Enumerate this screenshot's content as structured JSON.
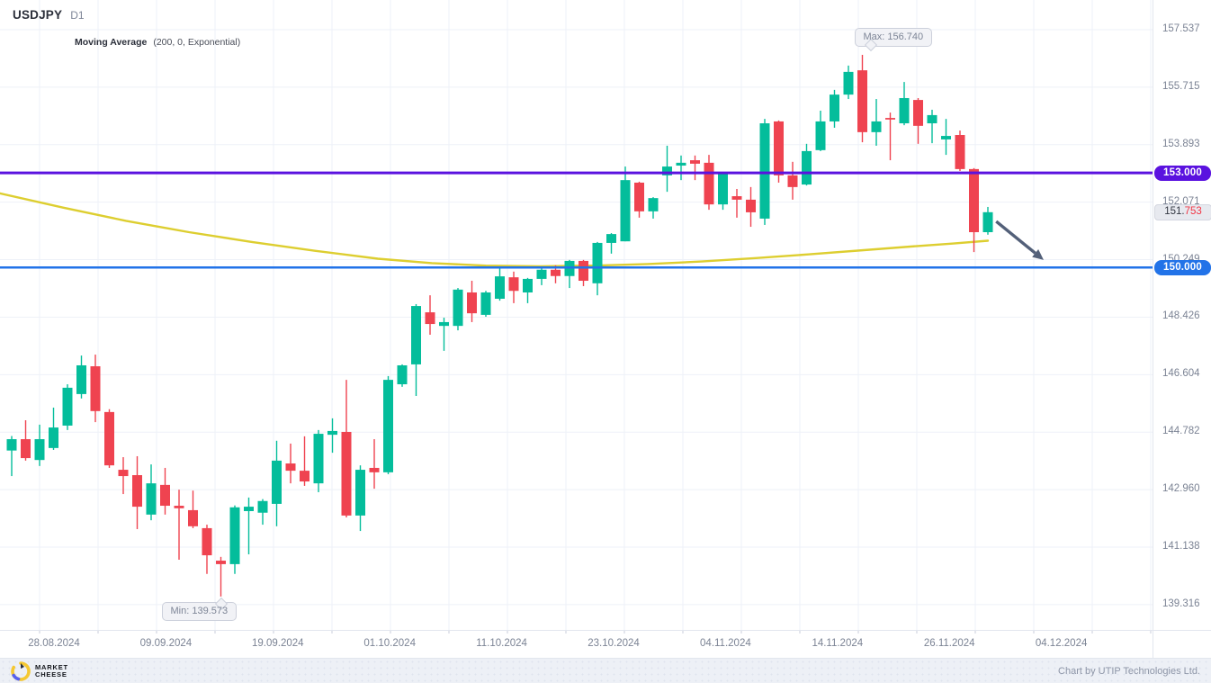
{
  "header": {
    "symbol": "USDJPY",
    "timeframe": "D1",
    "indicator_name": "Moving Average",
    "indicator_params": "(200, 0, Exponential)"
  },
  "colors": {
    "up": "#04bd9b",
    "down": "#ef4350",
    "ma_line": "#ddce30",
    "level_purple": "#5a12df",
    "level_blue": "#2273e8",
    "arrow": "#536079",
    "grid": "#eef1f8",
    "tick": "#c9cedb",
    "axis_text": "#7b8394",
    "price_badge_bg": "#e7e9ef",
    "price_badge_red": "#f23645"
  },
  "chart_data": {
    "type": "candlestick",
    "title": "USDJPY D1",
    "up_color": "#04bd9b",
    "down_color": "#ef4350",
    "y_tick_labels": [
      "157.537",
      "155.715",
      "153.893",
      "152.071",
      "150.249",
      "148.426",
      "146.604",
      "144.782",
      "142.960",
      "141.138",
      "139.316"
    ],
    "x_tick_labels": [
      "28.08.2024",
      "09.09.2024",
      "19.09.2024",
      "01.10.2024",
      "11.10.2024",
      "23.10.2024",
      "04.11.2024",
      "14.11.2024",
      "26.11.2024",
      "04.12.2024"
    ],
    "candles": [
      [
        144.2,
        144.66,
        143.39,
        144.56
      ],
      [
        144.56,
        145.16,
        143.88,
        143.96
      ],
      [
        143.9,
        145.02,
        143.71,
        144.56
      ],
      [
        144.28,
        145.56,
        144.22,
        144.93
      ],
      [
        144.99,
        146.3,
        144.85,
        146.19
      ],
      [
        145.99,
        147.21,
        145.85,
        146.9
      ],
      [
        146.87,
        147.24,
        145.1,
        145.45
      ],
      [
        145.42,
        145.51,
        143.65,
        143.73
      ],
      [
        143.59,
        143.99,
        142.82,
        143.39
      ],
      [
        143.42,
        144.02,
        141.71,
        142.42
      ],
      [
        142.17,
        143.76,
        141.99,
        143.16
      ],
      [
        143.11,
        143.65,
        142.17,
        142.45
      ],
      [
        142.45,
        142.96,
        140.74,
        142.37
      ],
      [
        142.31,
        142.93,
        141.74,
        141.8
      ],
      [
        141.74,
        141.85,
        140.29,
        140.88
      ],
      [
        140.71,
        140.83,
        139.573,
        140.6
      ],
      [
        140.6,
        142.46,
        140.29,
        142.4
      ],
      [
        142.28,
        142.71,
        140.91,
        142.42
      ],
      [
        142.23,
        142.66,
        141.85,
        142.6
      ],
      [
        142.51,
        144.51,
        141.8,
        143.88
      ],
      [
        143.79,
        144.42,
        143.16,
        143.56
      ],
      [
        143.56,
        144.65,
        143.08,
        143.22
      ],
      [
        143.16,
        144.85,
        142.88,
        144.73
      ],
      [
        144.7,
        145.22,
        144.13,
        144.82
      ],
      [
        144.79,
        146.44,
        142.08,
        142.14
      ],
      [
        142.14,
        143.73,
        141.65,
        143.59
      ],
      [
        143.65,
        144.56,
        142.99,
        143.51
      ],
      [
        143.51,
        146.56,
        143.45,
        146.44
      ],
      [
        146.3,
        146.93,
        146.22,
        146.9
      ],
      [
        146.93,
        148.84,
        145.93,
        148.78
      ],
      [
        148.58,
        149.12,
        147.87,
        148.21
      ],
      [
        148.15,
        148.41,
        147.36,
        148.27
      ],
      [
        148.15,
        149.35,
        148.01,
        149.3
      ],
      [
        149.21,
        149.58,
        148.27,
        148.55
      ],
      [
        148.5,
        149.26,
        148.44,
        149.21
      ],
      [
        149.01,
        150.01,
        148.95,
        149.72
      ],
      [
        149.69,
        149.87,
        148.87,
        149.26
      ],
      [
        149.21,
        149.67,
        148.87,
        149.64
      ],
      [
        149.64,
        150.01,
        149.44,
        149.93
      ],
      [
        149.93,
        150.07,
        149.5,
        149.73
      ],
      [
        149.73,
        150.24,
        149.35,
        150.21
      ],
      [
        150.21,
        150.24,
        149.41,
        149.58
      ],
      [
        149.5,
        150.81,
        149.12,
        150.78
      ],
      [
        150.78,
        151.09,
        150.44,
        151.06
      ],
      [
        150.83,
        153.2,
        150.83,
        152.77
      ],
      [
        152.69,
        152.72,
        151.58,
        151.78
      ],
      [
        151.78,
        152.23,
        151.55,
        152.2
      ],
      [
        152.92,
        153.86,
        152.4,
        153.2
      ],
      [
        153.23,
        153.55,
        152.77,
        153.32
      ],
      [
        153.4,
        153.55,
        152.77,
        153.29
      ],
      [
        153.32,
        153.57,
        151.83,
        152.0
      ],
      [
        152.0,
        153.0,
        151.83,
        152.97
      ],
      [
        152.26,
        152.49,
        151.58,
        152.15
      ],
      [
        152.15,
        152.55,
        151.29,
        151.75
      ],
      [
        151.55,
        154.71,
        151.35,
        154.57
      ],
      [
        154.63,
        154.66,
        152.69,
        152.92
      ],
      [
        152.92,
        153.35,
        152.15,
        152.55
      ],
      [
        152.63,
        153.92,
        152.6,
        153.69
      ],
      [
        153.72,
        154.97,
        153.69,
        154.63
      ],
      [
        154.63,
        155.63,
        154.43,
        155.48
      ],
      [
        155.48,
        156.4,
        155.34,
        156.2
      ],
      [
        156.25,
        156.74,
        153.97,
        154.29
      ],
      [
        154.29,
        155.34,
        153.86,
        154.63
      ],
      [
        154.74,
        154.91,
        153.4,
        154.69
      ],
      [
        154.57,
        155.88,
        154.51,
        155.37
      ],
      [
        155.31,
        155.37,
        153.92,
        154.49
      ],
      [
        154.57,
        155.0,
        153.94,
        154.83
      ],
      [
        154.06,
        154.71,
        153.57,
        154.17
      ],
      [
        154.2,
        154.34,
        153.06,
        153.12
      ],
      [
        153.12,
        153.15,
        150.49,
        151.12
      ],
      [
        151.12,
        151.92,
        151.04,
        151.753
      ]
    ],
    "ma": {
      "name": "Moving Average",
      "settings": "(200, 0, Exponential)",
      "color": "#ddce30",
      "points": [
        [
          0,
          152.35
        ],
        [
          70,
          151.9
        ],
        [
          140,
          151.48
        ],
        [
          210,
          151.12
        ],
        [
          280,
          150.81
        ],
        [
          350,
          150.53
        ],
        [
          420,
          150.28
        ],
        [
          480,
          150.14
        ],
        [
          540,
          150.06
        ],
        [
          600,
          150.04
        ],
        [
          660,
          150.06
        ],
        [
          720,
          150.11
        ],
        [
          780,
          150.19
        ],
        [
          840,
          150.3
        ],
        [
          900,
          150.42
        ],
        [
          960,
          150.55
        ],
        [
          1020,
          150.68
        ],
        [
          1060,
          150.76
        ],
        [
          1098,
          150.85
        ]
      ]
    },
    "levels": [
      {
        "label": "153.000",
        "price": 153.0,
        "color": "#5a12df"
      },
      {
        "label": "150.000",
        "price": 150.0,
        "color": "#2273e8"
      }
    ],
    "last_price": 151.753,
    "max_annotation": {
      "label": "Max: 156.740",
      "price": 156.74,
      "candle_index": 61
    },
    "min_annotation": {
      "label": "Min: 139.573",
      "price": 139.573,
      "candle_index": 15
    },
    "trend_arrow": {
      "from": {
        "candle": 70.6,
        "price": 151.46
      },
      "to": {
        "candle": 74.0,
        "price": 150.24
      }
    }
  },
  "price_label": {
    "prefix": "151.",
    "suffix": "753"
  },
  "levels_labels": {
    "purple": "153.000",
    "blue": "150.000"
  },
  "tooltips": {
    "max": "Max: 156.740",
    "min": "Min: 139.573"
  },
  "footer": {
    "logo_line1": "MARKET",
    "logo_line2": "CHEESE",
    "credit": "Chart by UTIP Technologies Ltd."
  }
}
